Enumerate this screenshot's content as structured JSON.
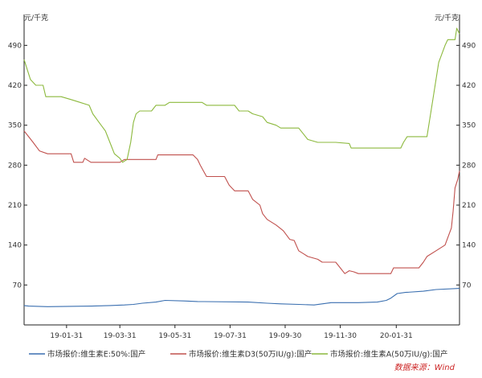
{
  "chart_data": {
    "type": "line",
    "y_unit_left": "元/千克",
    "y_unit_right": "元/千克",
    "ylim": [
      0,
      530
    ],
    "yticks": [
      70,
      140,
      210,
      280,
      350,
      420,
      490
    ],
    "x_range": [
      "2018-12-15",
      "2020-04-10"
    ],
    "x_ticks": [
      "19-01-31",
      "19-03-31",
      "19-05-31",
      "19-07-31",
      "19-09-30",
      "19-11-30",
      "20-01-31"
    ],
    "grid": false,
    "legend_position": "bottom",
    "source_text": "数据来源：Wind",
    "colors": {
      "axis": "#222222",
      "tick_text": "#333333",
      "source": "#cc2222"
    },
    "series": [
      {
        "name": "市场报价:维生素E:50%:国产",
        "color": "#3a6fb0",
        "points": [
          [
            "2018-12-15",
            34
          ],
          [
            "2018-12-20",
            33
          ],
          [
            "2019-01-10",
            32
          ],
          [
            "2019-02-28",
            33
          ],
          [
            "2019-03-20",
            34
          ],
          [
            "2019-04-05",
            35
          ],
          [
            "2019-04-15",
            36
          ],
          [
            "2019-04-25",
            38
          ],
          [
            "2019-05-10",
            40
          ],
          [
            "2019-05-20",
            43
          ],
          [
            "2019-06-10",
            42
          ],
          [
            "2019-06-25",
            41
          ],
          [
            "2019-08-20",
            40
          ],
          [
            "2019-09-10",
            38
          ],
          [
            "2019-09-25",
            37
          ],
          [
            "2019-10-15",
            36
          ],
          [
            "2019-11-01",
            35
          ],
          [
            "2019-11-10",
            37
          ],
          [
            "2019-11-20",
            39
          ],
          [
            "2019-12-20",
            39
          ],
          [
            "2020-01-10",
            40
          ],
          [
            "2020-01-20",
            43
          ],
          [
            "2020-01-25",
            47
          ],
          [
            "2020-02-01",
            55
          ],
          [
            "2020-02-10",
            57
          ],
          [
            "2020-03-01",
            59
          ],
          [
            "2020-03-15",
            62
          ],
          [
            "2020-04-10",
            64
          ]
        ]
      },
      {
        "name": "市场报价:维生素D3(50万IU/g):国产",
        "color": "#c0504d",
        "points": [
          [
            "2018-12-15",
            340
          ],
          [
            "2018-12-20",
            330
          ],
          [
            "2018-12-25",
            320
          ],
          [
            "2019-01-01",
            305
          ],
          [
            "2019-01-10",
            300
          ],
          [
            "2019-02-05",
            300
          ],
          [
            "2019-02-08",
            285
          ],
          [
            "2019-02-18",
            285
          ],
          [
            "2019-02-20",
            292
          ],
          [
            "2019-02-27",
            285
          ],
          [
            "2019-03-31",
            285
          ],
          [
            "2019-04-05",
            290
          ],
          [
            "2019-05-10",
            290
          ],
          [
            "2019-05-12",
            298
          ],
          [
            "2019-06-20",
            298
          ],
          [
            "2019-06-25",
            290
          ],
          [
            "2019-06-28",
            280
          ],
          [
            "2019-07-05",
            260
          ],
          [
            "2019-07-25",
            260
          ],
          [
            "2019-07-30",
            245
          ],
          [
            "2019-08-05",
            235
          ],
          [
            "2019-08-20",
            235
          ],
          [
            "2019-08-25",
            220
          ],
          [
            "2019-09-02",
            210
          ],
          [
            "2019-09-05",
            195
          ],
          [
            "2019-09-10",
            185
          ],
          [
            "2019-09-20",
            175
          ],
          [
            "2019-09-28",
            165
          ],
          [
            "2019-10-05",
            150
          ],
          [
            "2019-10-10",
            148
          ],
          [
            "2019-10-15",
            130
          ],
          [
            "2019-10-20",
            125
          ],
          [
            "2019-10-25",
            120
          ],
          [
            "2019-11-05",
            115
          ],
          [
            "2019-11-10",
            110
          ],
          [
            "2019-11-25",
            110
          ],
          [
            "2019-11-30",
            100
          ],
          [
            "2019-12-05",
            90
          ],
          [
            "2019-12-10",
            95
          ],
          [
            "2019-12-15",
            93
          ],
          [
            "2019-12-20",
            90
          ],
          [
            "2020-01-25",
            90
          ],
          [
            "2020-01-28",
            100
          ],
          [
            "2020-02-25",
            100
          ],
          [
            "2020-03-01",
            110
          ],
          [
            "2020-03-05",
            120
          ],
          [
            "2020-03-15",
            130
          ],
          [
            "2020-03-25",
            140
          ],
          [
            "2020-04-01",
            170
          ],
          [
            "2020-04-03",
            200
          ],
          [
            "2020-04-05",
            240
          ],
          [
            "2020-04-08",
            255
          ],
          [
            "2020-04-10",
            270
          ]
        ]
      },
      {
        "name": "市场报价:维生素A(50万IU/g):国产",
        "color": "#8cb93d",
        "points": [
          [
            "2018-12-15",
            465
          ],
          [
            "2018-12-18",
            450
          ],
          [
            "2018-12-22",
            430
          ],
          [
            "2018-12-28",
            420
          ],
          [
            "2019-01-05",
            420
          ],
          [
            "2019-01-08",
            400
          ],
          [
            "2019-01-25",
            400
          ],
          [
            "2019-02-05",
            395
          ],
          [
            "2019-02-15",
            390
          ],
          [
            "2019-02-25",
            385
          ],
          [
            "2019-03-01",
            370
          ],
          [
            "2019-03-08",
            355
          ],
          [
            "2019-03-15",
            340
          ],
          [
            "2019-03-20",
            320
          ],
          [
            "2019-03-25",
            300
          ],
          [
            "2019-03-31",
            292
          ],
          [
            "2019-04-03",
            285
          ],
          [
            "2019-04-08",
            290
          ],
          [
            "2019-04-12",
            320
          ],
          [
            "2019-04-15",
            355
          ],
          [
            "2019-04-18",
            370
          ],
          [
            "2019-04-22",
            375
          ],
          [
            "2019-05-05",
            375
          ],
          [
            "2019-05-10",
            385
          ],
          [
            "2019-05-20",
            385
          ],
          [
            "2019-05-25",
            390
          ],
          [
            "2019-06-30",
            390
          ],
          [
            "2019-07-05",
            385
          ],
          [
            "2019-08-05",
            385
          ],
          [
            "2019-08-10",
            375
          ],
          [
            "2019-08-20",
            375
          ],
          [
            "2019-08-25",
            370
          ],
          [
            "2019-09-05",
            365
          ],
          [
            "2019-09-10",
            355
          ],
          [
            "2019-09-20",
            350
          ],
          [
            "2019-09-25",
            345
          ],
          [
            "2019-10-15",
            345
          ],
          [
            "2019-10-20",
            335
          ],
          [
            "2019-10-25",
            325
          ],
          [
            "2019-11-05",
            320
          ],
          [
            "2019-11-25",
            320
          ],
          [
            "2019-12-10",
            318
          ],
          [
            "2019-12-12",
            310
          ],
          [
            "2020-02-05",
            310
          ],
          [
            "2020-02-08",
            320
          ],
          [
            "2020-02-12",
            330
          ],
          [
            "2020-03-05",
            330
          ],
          [
            "2020-03-08",
            360
          ],
          [
            "2020-03-12",
            400
          ],
          [
            "2020-03-18",
            460
          ],
          [
            "2020-03-25",
            490
          ],
          [
            "2020-03-28",
            500
          ],
          [
            "2020-04-05",
            500
          ],
          [
            "2020-04-07",
            520
          ],
          [
            "2020-04-10",
            510
          ]
        ]
      }
    ]
  }
}
